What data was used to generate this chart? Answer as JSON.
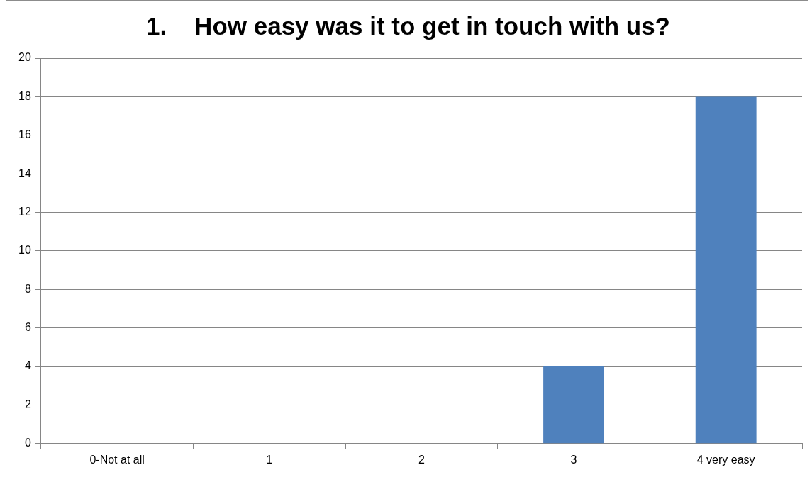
{
  "chart_data": {
    "type": "bar",
    "title": "1.    How easy was it to get in touch with us?",
    "categories": [
      "0-Not at all",
      "1",
      "2",
      "3",
      "4 very easy"
    ],
    "values": [
      0,
      0,
      0,
      4,
      18
    ],
    "color": "#4f81bd",
    "ylim": [
      0,
      20
    ],
    "yticks": [
      0,
      2,
      4,
      6,
      8,
      10,
      12,
      14,
      16,
      18,
      20
    ],
    "grid": "y",
    "legend": false
  }
}
